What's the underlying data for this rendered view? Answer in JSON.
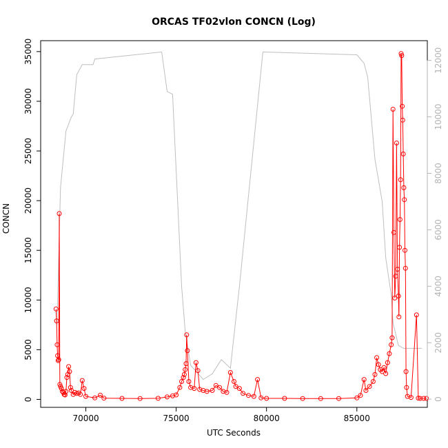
{
  "chart_data": {
    "type": "line",
    "title": "ORCAS TF02vlon CONCN (Log)",
    "xlabel": "UTC Seconds",
    "ylabel": "CONCN",
    "xlim": [
      67500,
      88900
    ],
    "ylim": [
      -800,
      36100
    ],
    "y2lim": [
      -290,
      12700
    ],
    "x_ticks": [
      "70000",
      "75000",
      "80000",
      "85000"
    ],
    "x_tick_values": [
      70000,
      75000,
      80000,
      85000
    ],
    "y_ticks": [
      "0",
      "5000",
      "10000",
      "15000",
      "20000",
      "25000",
      "30000",
      "35000"
    ],
    "y_tick_values": [
      0,
      5000,
      10000,
      15000,
      20000,
      25000,
      30000,
      35000
    ],
    "y2_ticks": [
      "0",
      "2000",
      "4000",
      "6000",
      "8000",
      "10000",
      "12000"
    ],
    "y2_tick_values": [
      0,
      2000,
      4000,
      6000,
      8000,
      10000,
      12000
    ],
    "grid": false,
    "colors": {
      "series": "#ff0000",
      "secondary": "#bebebe",
      "axis": "#000000",
      "secondary_axis": "#b3b3b3"
    },
    "series": [
      {
        "values_xy": [
          [
            68350,
            9100
          ],
          [
            68380,
            7900
          ],
          [
            68410,
            5500
          ],
          [
            68440,
            4400
          ],
          [
            68470,
            3900
          ],
          [
            68500,
            4000
          ],
          [
            68530,
            18700
          ],
          [
            68560,
            1500
          ],
          [
            68600,
            1300
          ],
          [
            68650,
            1100
          ],
          [
            68700,
            800
          ],
          [
            68750,
            700
          ],
          [
            68800,
            500
          ],
          [
            68850,
            450
          ],
          [
            68900,
            800
          ],
          [
            68950,
            2200
          ],
          [
            69000,
            2500
          ],
          [
            69050,
            3300
          ],
          [
            69100,
            2800
          ],
          [
            69150,
            1200
          ],
          [
            69200,
            900
          ],
          [
            69300,
            500
          ],
          [
            69400,
            700
          ],
          [
            69500,
            600
          ],
          [
            69600,
            650
          ],
          [
            69700,
            500
          ],
          [
            69800,
            1900
          ],
          [
            69900,
            1100
          ],
          [
            70000,
            300
          ],
          [
            70500,
            150
          ],
          [
            70800,
            420
          ],
          [
            71000,
            120
          ],
          [
            72000,
            100
          ],
          [
            73000,
            90
          ],
          [
            74000,
            110
          ],
          [
            74500,
            250
          ],
          [
            74800,
            350
          ],
          [
            75000,
            450
          ],
          [
            75200,
            1200
          ],
          [
            75300,
            1800
          ],
          [
            75400,
            2200
          ],
          [
            75450,
            2500
          ],
          [
            75500,
            3000
          ],
          [
            75550,
            3600
          ],
          [
            75580,
            6500
          ],
          [
            75620,
            4900
          ],
          [
            75700,
            1800
          ],
          [
            75800,
            1200
          ],
          [
            76000,
            1100
          ],
          [
            76100,
            3700
          ],
          [
            76200,
            2900
          ],
          [
            76300,
            1000
          ],
          [
            76500,
            900
          ],
          [
            76700,
            800
          ],
          [
            77000,
            900
          ],
          [
            77200,
            1400
          ],
          [
            77400,
            1200
          ],
          [
            77600,
            800
          ],
          [
            77800,
            700
          ],
          [
            78000,
            2700
          ],
          [
            78200,
            1800
          ],
          [
            78300,
            1300
          ],
          [
            78500,
            1100
          ],
          [
            78700,
            600
          ],
          [
            79000,
            400
          ],
          [
            79300,
            300
          ],
          [
            79500,
            2000
          ],
          [
            79700,
            150
          ],
          [
            80000,
            100
          ],
          [
            81000,
            100
          ],
          [
            82000,
            90
          ],
          [
            83000,
            80
          ],
          [
            84000,
            90
          ],
          [
            85000,
            150
          ],
          [
            85200,
            400
          ],
          [
            85400,
            2000
          ],
          [
            85500,
            900
          ],
          [
            85700,
            1300
          ],
          [
            85900,
            1800
          ],
          [
            86000,
            2500
          ],
          [
            86100,
            4200
          ],
          [
            86200,
            3500
          ],
          [
            86300,
            3000
          ],
          [
            86400,
            2800
          ],
          [
            86500,
            3200
          ],
          [
            86600,
            2600
          ],
          [
            86700,
            3700
          ],
          [
            86800,
            4600
          ],
          [
            86900,
            5500
          ],
          [
            86950,
            6200
          ],
          [
            87000,
            29200
          ],
          [
            87050,
            16800
          ],
          [
            87100,
            10200
          ],
          [
            87150,
            12400
          ],
          [
            87200,
            25800
          ],
          [
            87250,
            13100
          ],
          [
            87300,
            10400
          ],
          [
            87330,
            8300
          ],
          [
            87360,
            15300
          ],
          [
            87390,
            18100
          ],
          [
            87420,
            22100
          ],
          [
            87450,
            34800
          ],
          [
            87480,
            34600
          ],
          [
            87510,
            29500
          ],
          [
            87540,
            28100
          ],
          [
            87570,
            24700
          ],
          [
            87600,
            21300
          ],
          [
            87630,
            20100
          ],
          [
            87660,
            15000
          ],
          [
            87690,
            13200
          ],
          [
            87720,
            2800
          ],
          [
            87750,
            1200
          ],
          [
            87800,
            300
          ],
          [
            88000,
            200
          ],
          [
            88300,
            8500
          ],
          [
            88400,
            120
          ],
          [
            88500,
            100
          ],
          [
            88700,
            100
          ],
          [
            88850,
            100
          ]
        ]
      }
    ],
    "secondary_series": {
      "values_xy": [
        [
          68400,
          2600
        ],
        [
          68600,
          7500
        ],
        [
          68900,
          9500
        ],
        [
          69200,
          10000
        ],
        [
          69300,
          10100
        ],
        [
          69500,
          11500
        ],
        [
          69800,
          11850
        ],
        [
          70400,
          11850
        ],
        [
          70500,
          12050
        ],
        [
          74200,
          12300
        ],
        [
          74500,
          10900
        ],
        [
          74800,
          10800
        ],
        [
          75300,
          4000
        ],
        [
          75500,
          2400
        ],
        [
          75800,
          1200
        ],
        [
          76500,
          700
        ],
        [
          77000,
          900
        ],
        [
          77500,
          1400
        ],
        [
          78000,
          1100
        ],
        [
          78500,
          4000
        ],
        [
          79800,
          12300
        ],
        [
          85000,
          12200
        ],
        [
          85400,
          11900
        ],
        [
          85600,
          11400
        ],
        [
          86000,
          8500
        ],
        [
          86400,
          7000
        ],
        [
          86600,
          5000
        ],
        [
          86900,
          3700
        ],
        [
          87000,
          2700
        ],
        [
          87300,
          1900
        ],
        [
          87600,
          1800
        ],
        [
          88000,
          1800
        ],
        [
          88600,
          1800
        ]
      ]
    }
  }
}
